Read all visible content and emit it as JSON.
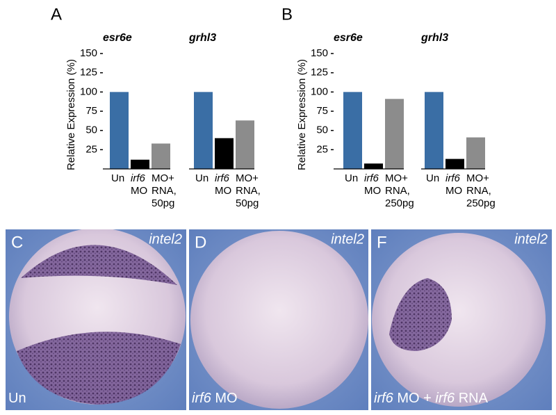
{
  "chart_data": [
    {
      "type": "bar",
      "panel": "A",
      "title": "esr6e",
      "ylabel": "Relative Expression (%)",
      "categories": [
        "Un",
        "irf6 MO",
        "MO+ RNA, 50pg"
      ],
      "values": [
        100,
        12,
        33
      ],
      "colors": [
        "#3a6ea5",
        "#000000",
        "#8c8c8c"
      ],
      "ylim": [
        0,
        150
      ],
      "yticks": [
        25,
        50,
        75,
        100,
        125,
        150
      ]
    },
    {
      "type": "bar",
      "title": "grhl3",
      "categories": [
        "Un",
        "irf6 MO",
        "MO+ RNA, 50pg"
      ],
      "values": [
        100,
        40,
        63
      ],
      "colors": [
        "#3a6ea5",
        "#000000",
        "#8c8c8c"
      ],
      "ylim": [
        0,
        150
      ]
    },
    {
      "type": "bar",
      "panel": "B",
      "title": "esr6e",
      "ylabel": "Relative Expression (%)",
      "categories": [
        "Un",
        "irf6 MO",
        "MO+ RNA, 250pg"
      ],
      "values": [
        100,
        7,
        91
      ],
      "colors": [
        "#3a6ea5",
        "#000000",
        "#8c8c8c"
      ],
      "ylim": [
        0,
        150
      ],
      "yticks": [
        25,
        50,
        75,
        100,
        125,
        150
      ]
    },
    {
      "type": "bar",
      "title": "grhl3",
      "categories": [
        "Un",
        "irf6 MO",
        "MO+ RNA, 250pg"
      ],
      "values": [
        100,
        13,
        41
      ],
      "colors": [
        "#3a6ea5",
        "#000000",
        "#8c8c8c"
      ],
      "ylim": [
        0,
        150
      ]
    }
  ],
  "images": [
    {
      "panel": "C",
      "probe": "intel2",
      "caption": "Un"
    },
    {
      "panel": "D",
      "probe": "intel2",
      "caption": "irf6 MO"
    },
    {
      "panel": "F",
      "probe": "intel2",
      "caption": "irf6 MO + irf6 RNA"
    }
  ]
}
